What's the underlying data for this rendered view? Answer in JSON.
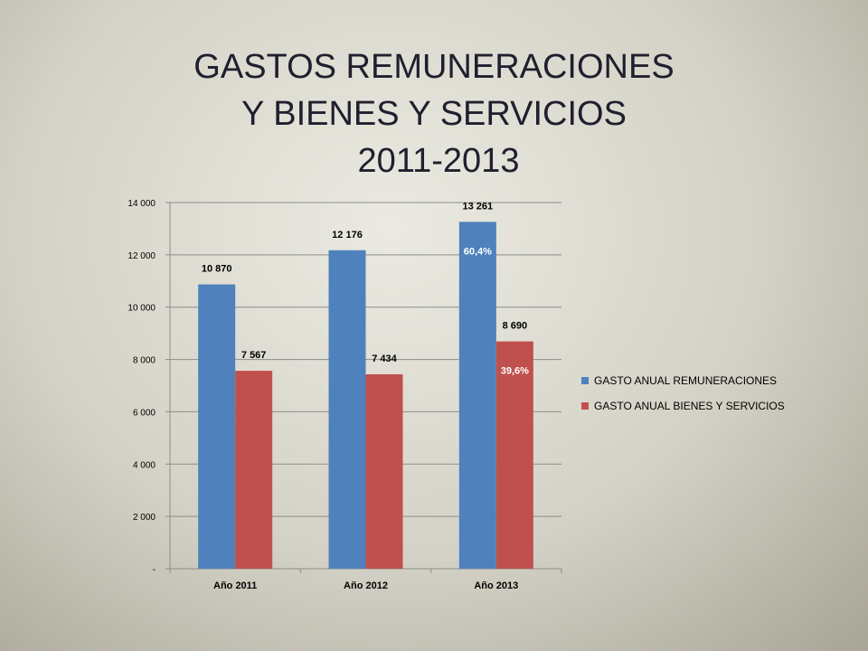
{
  "title": {
    "line1": "GASTOS REMUNERACIONES",
    "line2": "Y BIENES Y SERVICIOS",
    "line3": "2011-2013"
  },
  "colors": {
    "series1": "#4f81bd",
    "series2": "#c0504d",
    "grid": "#8c8c8c"
  },
  "chart_data": {
    "type": "bar",
    "categories": [
      "Año 2011",
      "Año 2012",
      "Año 2013"
    ],
    "series": [
      {
        "name": "GASTO ANUAL REMUNERACIONES",
        "values": [
          10870,
          12176,
          13261
        ],
        "value_labels": [
          "10 870",
          "12 176",
          "13 261"
        ],
        "percent_labels": [
          "",
          "",
          "60,4%"
        ]
      },
      {
        "name": "GASTO ANUAL BIENES Y SERVICIOS",
        "values": [
          7567,
          7434,
          8690
        ],
        "value_labels": [
          "7 567",
          "7 434",
          "8 690"
        ],
        "percent_labels": [
          "",
          "",
          "39,6%"
        ]
      }
    ],
    "yticks": [
      {
        "value": 0,
        "label": "-"
      },
      {
        "value": 2000,
        "label": "2 000"
      },
      {
        "value": 4000,
        "label": "4 000"
      },
      {
        "value": 6000,
        "label": "6 000"
      },
      {
        "value": 8000,
        "label": "8 000"
      },
      {
        "value": 10000,
        "label": "10 000"
      },
      {
        "value": 12000,
        "label": "12 000"
      },
      {
        "value": 14000,
        "label": "14 000"
      }
    ],
    "ylim": [
      0,
      14000
    ],
    "grid": true,
    "legend_position": "right"
  }
}
